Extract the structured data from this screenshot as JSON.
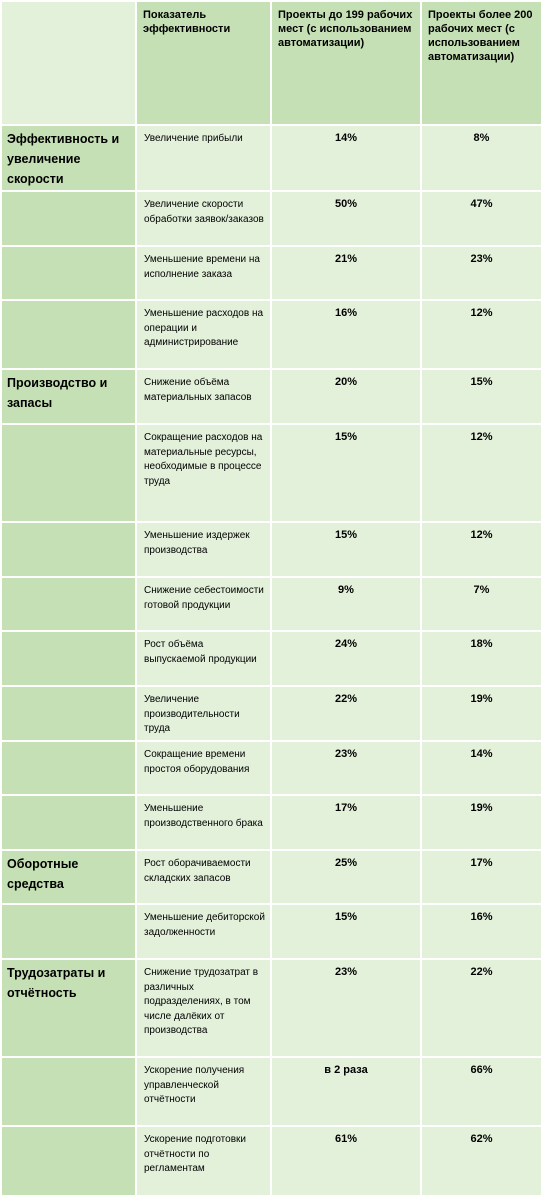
{
  "header": {
    "corner": "",
    "col_indicator": "Показатель эффективности",
    "col_small": "Проекты до 199 рабочих мест (с использованием автоматизации)",
    "col_large": "Проекты более 200 рабочих мест (с использованием автоматизации)"
  },
  "rows": [
    {
      "category": "Эффективность и увеличение скорости",
      "indicator": "Увеличение прибыли",
      "small": "14%",
      "large": "8%"
    },
    {
      "category": "",
      "indicator": "Увеличение скорости обработки заявок/заказов",
      "small": "50%",
      "large": "47%"
    },
    {
      "category": "",
      "indicator": "Уменьшение времени на исполнение заказа",
      "small": "21%",
      "large": "23%"
    },
    {
      "category": "",
      "indicator": "Уменьшение расходов на операции и администрирование",
      "small": "16%",
      "large": "12%"
    },
    {
      "category": "Производство и запасы",
      "indicator": "Снижение объёма материальных запасов",
      "small": "20%",
      "large": "15%"
    },
    {
      "category": "",
      "indicator": "Сокращение расходов на материальные ресурсы, необходимые в процессе труда",
      "small": "15%",
      "large": "12%"
    },
    {
      "category": "",
      "indicator": "Уменьшение издержек производства",
      "small": "15%",
      "large": "12%"
    },
    {
      "category": "",
      "indicator": "Снижение себестоимости готовой продукции",
      "small": "9%",
      "large": "7%"
    },
    {
      "category": "",
      "indicator": "Рост объёма выпускаемой продукции",
      "small": "24%",
      "large": "18%"
    },
    {
      "category": "",
      "indicator": "Увеличение производительности труда",
      "small": "22%",
      "large": "19%"
    },
    {
      "category": "",
      "indicator": "Сокращение времени простоя оборудования",
      "small": "23%",
      "large": "14%"
    },
    {
      "category": "",
      "indicator": "Уменьшение производственного брака",
      "small": "17%",
      "large": "19%"
    },
    {
      "category": "Оборотные средства",
      "indicator": "Рост оборачиваемости складских запасов",
      "small": "25%",
      "large": "17%"
    },
    {
      "category": "",
      "indicator": "Уменьшение дебиторской задолженности",
      "small": "15%",
      "large": "16%"
    },
    {
      "category": "Трудозатраты и отчётность",
      "indicator": "Снижение трудозатрат в различных подразделениях, в том числе далёких от производства",
      "small": "23%",
      "large": "22%"
    },
    {
      "category": "",
      "indicator": "Ускорение получения управленческой отчётности",
      "small": "в 2 раза",
      "large": "66%"
    },
    {
      "category": "",
      "indicator": "Ускорение подготовки отчётности по регламентам",
      "small": "61%",
      "large": "62%"
    }
  ]
}
